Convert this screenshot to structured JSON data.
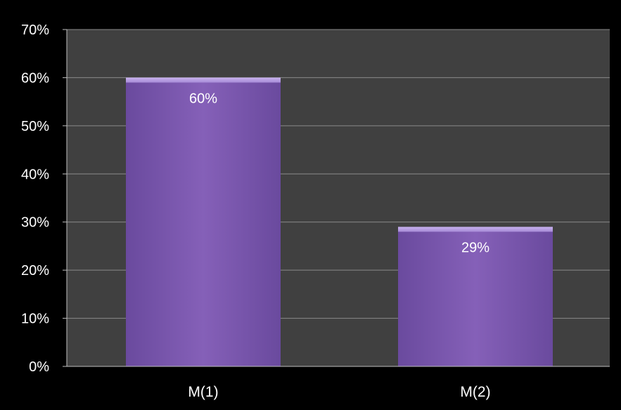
{
  "chart_data": {
    "type": "bar",
    "categories": [
      "M(1)",
      "M(2)"
    ],
    "values": [
      60,
      29
    ],
    "value_unit": "%",
    "data_labels": [
      "60%",
      "29%"
    ],
    "ylim": [
      0,
      70
    ],
    "y_ticks": [
      0,
      10,
      20,
      30,
      40,
      50,
      60,
      70
    ],
    "y_tick_labels": [
      "0%",
      "10%",
      "20%",
      "30%",
      "40%",
      "50%",
      "60%",
      "70%"
    ],
    "grid": true,
    "legend": "none",
    "colors": {
      "background": "#000000",
      "plot_area": "#404040",
      "gridline": "#8a8a8a",
      "axis": "#bfbfbf",
      "bar_light": "#a68ad6",
      "bar_mid": "#8560b8",
      "bar_dark": "#6a4a9e",
      "text": "#ffffff"
    }
  }
}
